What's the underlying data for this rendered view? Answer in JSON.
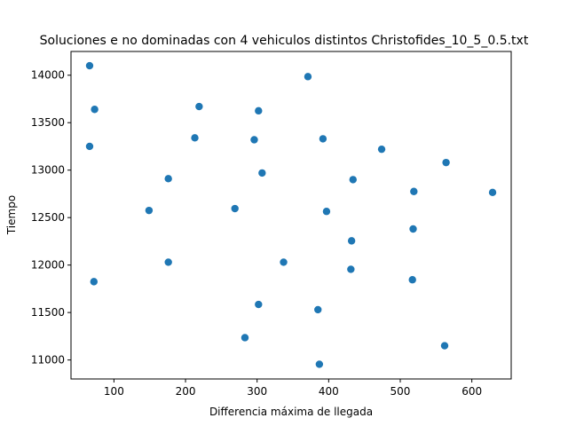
{
  "chart_data": {
    "type": "scatter",
    "title": "Soluciones e no dominadas con 4 vehiculos distintos Christofides_10_5_0.5.txt",
    "xlabel": "Differencia máxima de llegada",
    "ylabel": "Tiempo",
    "xlim": [
      40,
      655
    ],
    "ylim": [
      10800,
      14250
    ],
    "xticks": [
      100,
      200,
      300,
      400,
      500,
      600
    ],
    "yticks": [
      11000,
      11500,
      12000,
      12500,
      13000,
      13500,
      14000
    ],
    "grid": false,
    "marker_color": "#1f77b4",
    "points": [
      {
        "x": 66,
        "y": 14100
      },
      {
        "x": 371,
        "y": 13985
      },
      {
        "x": 73,
        "y": 13640
      },
      {
        "x": 219,
        "y": 13670
      },
      {
        "x": 302,
        "y": 13625
      },
      {
        "x": 66,
        "y": 13250
      },
      {
        "x": 213,
        "y": 13340
      },
      {
        "x": 296,
        "y": 13320
      },
      {
        "x": 392,
        "y": 13330
      },
      {
        "x": 474,
        "y": 13220
      },
      {
        "x": 564,
        "y": 13080
      },
      {
        "x": 176,
        "y": 12910
      },
      {
        "x": 307,
        "y": 12970
      },
      {
        "x": 434,
        "y": 12900
      },
      {
        "x": 519,
        "y": 12775
      },
      {
        "x": 629,
        "y": 12765
      },
      {
        "x": 149,
        "y": 12575
      },
      {
        "x": 269,
        "y": 12595
      },
      {
        "x": 397,
        "y": 12565
      },
      {
        "x": 432,
        "y": 12255
      },
      {
        "x": 518,
        "y": 12380
      },
      {
        "x": 176,
        "y": 12030
      },
      {
        "x": 337,
        "y": 12030
      },
      {
        "x": 431,
        "y": 11955
      },
      {
        "x": 517,
        "y": 11845
      },
      {
        "x": 72,
        "y": 11825
      },
      {
        "x": 302,
        "y": 11585
      },
      {
        "x": 385,
        "y": 11530
      },
      {
        "x": 283,
        "y": 11235
      },
      {
        "x": 562,
        "y": 11150
      },
      {
        "x": 387,
        "y": 10955
      }
    ]
  }
}
